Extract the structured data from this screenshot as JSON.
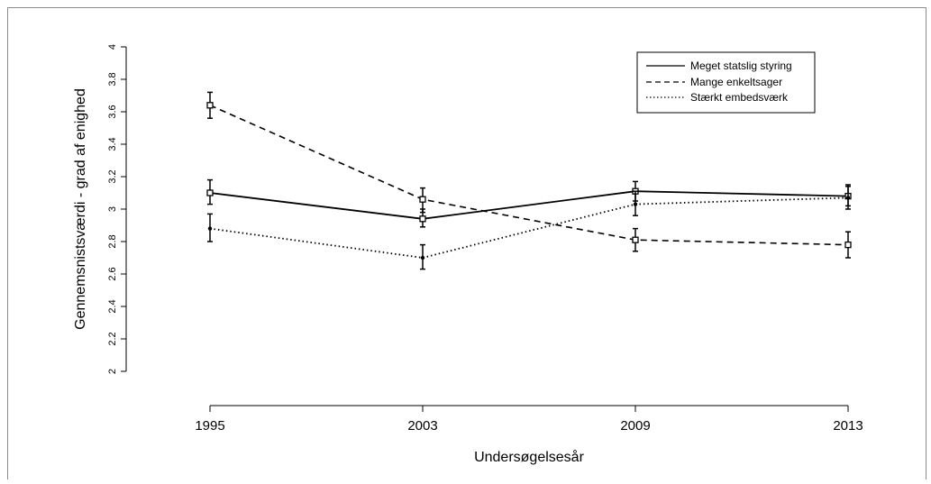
{
  "chart_data": {
    "type": "line",
    "x": [
      "1995",
      "2003",
      "2009",
      "2013"
    ],
    "xlabel": "Undersøgelsesår",
    "ylabel": "Gennemsnistsværdi - grad af enighed",
    "ylim": [
      2,
      4
    ],
    "yticks": [
      "2",
      "2.2",
      "2.4",
      "2.6",
      "2.8",
      "3",
      "3.2",
      "3.4",
      "3.6",
      "3.8",
      "4"
    ],
    "legend_position": "top-right",
    "grid": false,
    "series": [
      {
        "name": "Meget statslig styring",
        "style": "solid",
        "marker": "square",
        "values": [
          3.1,
          2.94,
          3.11,
          3.08
        ],
        "error_low": [
          3.03,
          2.89,
          3.05,
          3.02
        ],
        "error_high": [
          3.18,
          3.0,
          3.17,
          3.14
        ]
      },
      {
        "name": "Mange enkeltsager",
        "style": "dashed",
        "marker": "square",
        "values": [
          3.64,
          3.06,
          2.81,
          2.78
        ],
        "error_low": [
          3.56,
          2.98,
          2.74,
          2.7
        ],
        "error_high": [
          3.72,
          3.13,
          2.88,
          2.86
        ]
      },
      {
        "name": "Stærkt embedsværk",
        "style": "dotted",
        "marker": "dot",
        "values": [
          2.88,
          2.7,
          3.03,
          3.07
        ],
        "error_low": [
          2.8,
          2.63,
          2.96,
          3.0
        ],
        "error_high": [
          2.97,
          2.78,
          3.11,
          3.15
        ]
      }
    ]
  }
}
